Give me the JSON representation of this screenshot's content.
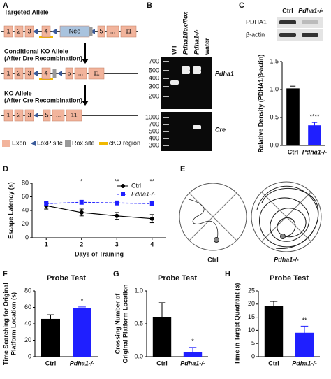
{
  "figure": {
    "panel_labels": [
      "A",
      "B",
      "C",
      "D",
      "E",
      "F",
      "G",
      "H"
    ],
    "allele_diagram": {
      "alleles": [
        {
          "title": [
            "Targeted Allele"
          ],
          "exons": [
            "1",
            "2",
            "3",
            "4",
            "Neo",
            "5",
            "...",
            "11"
          ]
        },
        {
          "title": [
            "Conditional KO Allele",
            "(After Dre Recombination)"
          ],
          "exons": [
            "1",
            "2",
            "3",
            "4",
            "5",
            "...",
            "11"
          ]
        },
        {
          "title": [
            "KO Allele",
            "(After Cre Recombination)"
          ],
          "exons": [
            "1",
            "2",
            "3",
            "5",
            "...",
            "11"
          ]
        }
      ],
      "legend": [
        "Exon",
        "LoxP site",
        "Rox site",
        "cKO region"
      ]
    },
    "gel": {
      "lanes": [
        "WT",
        "Pdha1flox/flox",
        "Pdha1-/-",
        "water"
      ],
      "top": {
        "ladder": [
          700,
          500,
          400,
          300,
          200
        ],
        "gene": "Pdha1"
      },
      "bottom": {
        "ladder": [
          1000,
          700,
          500,
          400,
          300
        ],
        "gene": "Cre"
      }
    },
    "blot": {
      "lanes": [
        "Ctrl",
        "Pdha1-/-"
      ],
      "proteins": [
        "PDHA1",
        "β-actin"
      ]
    },
    "tracks": {
      "labels": [
        "Ctrl",
        "Pdha1-/-"
      ]
    }
  },
  "chart_data": [
    {
      "type": "bar",
      "ylabel": [
        "Relative Density (PDHA1/β-actin)"
      ],
      "categories": [
        "Ctrl",
        "Pdha1-/-"
      ],
      "values": [
        1.02,
        0.36
      ],
      "errors": [
        0.04,
        0.05
      ],
      "colors": [
        "#000000",
        "#1f1fff"
      ],
      "significance": [
        null,
        "****"
      ],
      "ylim": [
        0,
        1.5
      ],
      "yticks": [
        {
          "value": 0,
          "label": "0.0"
        },
        0.5,
        {
          "value": 1,
          "label": "1.0"
        },
        1.5
      ]
    },
    {
      "type": "line",
      "xlabel": "Days of Training",
      "ylabel": [
        "Escape Latency (s)"
      ],
      "x": [
        1,
        2,
        3,
        4
      ],
      "xlim": [
        0.6,
        4.4
      ],
      "xticks": [
        1,
        2,
        3,
        4
      ],
      "ylim": [
        0,
        80
      ],
      "yticks": [
        0,
        20,
        40,
        60,
        80
      ],
      "legend": "upper right",
      "significance": [
        null,
        "*",
        "**",
        "**"
      ],
      "series": [
        {
          "name": "Ctrl",
          "color": "#000000",
          "values": [
            47,
            37,
            32,
            28
          ],
          "errors": [
            5,
            5,
            5,
            6
          ]
        },
        {
          "name": "Pdha1-/-",
          "color": "#1f1fff",
          "values": [
            50,
            52,
            51,
            50
          ],
          "errors": [
            3,
            3,
            3,
            3
          ]
        }
      ]
    },
    {
      "type": "bar",
      "title": "Probe Test",
      "ylabel": [
        "Time Searching for Original",
        "Platform Location (s)"
      ],
      "categories": [
        "Ctrl",
        "Pdha1-/-"
      ],
      "values": [
        46,
        59
      ],
      "errors": [
        5,
        1.5
      ],
      "colors": [
        "#000000",
        "#1f1fff"
      ],
      "significance": [
        null,
        "*"
      ],
      "ylim": [
        0,
        80
      ],
      "yticks": [
        0,
        20,
        40,
        60,
        80
      ]
    },
    {
      "type": "bar",
      "title": "Probe Test",
      "ylabel": [
        "Crossing Number of",
        "Original Platform Location"
      ],
      "categories": [
        "Ctrl",
        "Pdha1-/-"
      ],
      "values": [
        0.6,
        0.07
      ],
      "errors": [
        0.22,
        0.07
      ],
      "colors": [
        "#000000",
        "#1f1fff"
      ],
      "significance": [
        null,
        "*"
      ],
      "ylim": [
        0,
        1
      ],
      "yticks": [
        {
          "value": 0,
          "label": "0.0"
        },
        0.5,
        {
          "value": 1,
          "label": "1.0"
        }
      ]
    },
    {
      "type": "bar",
      "title": "Probe Test",
      "ylabel": [
        "Time in Target Quadrant (s)"
      ],
      "categories": [
        "Ctrl",
        "Pdha1-/-"
      ],
      "values": [
        19.2,
        9.1
      ],
      "errors": [
        1.8,
        2.5
      ],
      "colors": [
        "#000000",
        "#1f1fff"
      ],
      "significance": [
        null,
        "**"
      ],
      "ylim": [
        0,
        25
      ],
      "yticks": [
        0,
        5,
        10,
        15,
        20,
        25
      ]
    }
  ]
}
